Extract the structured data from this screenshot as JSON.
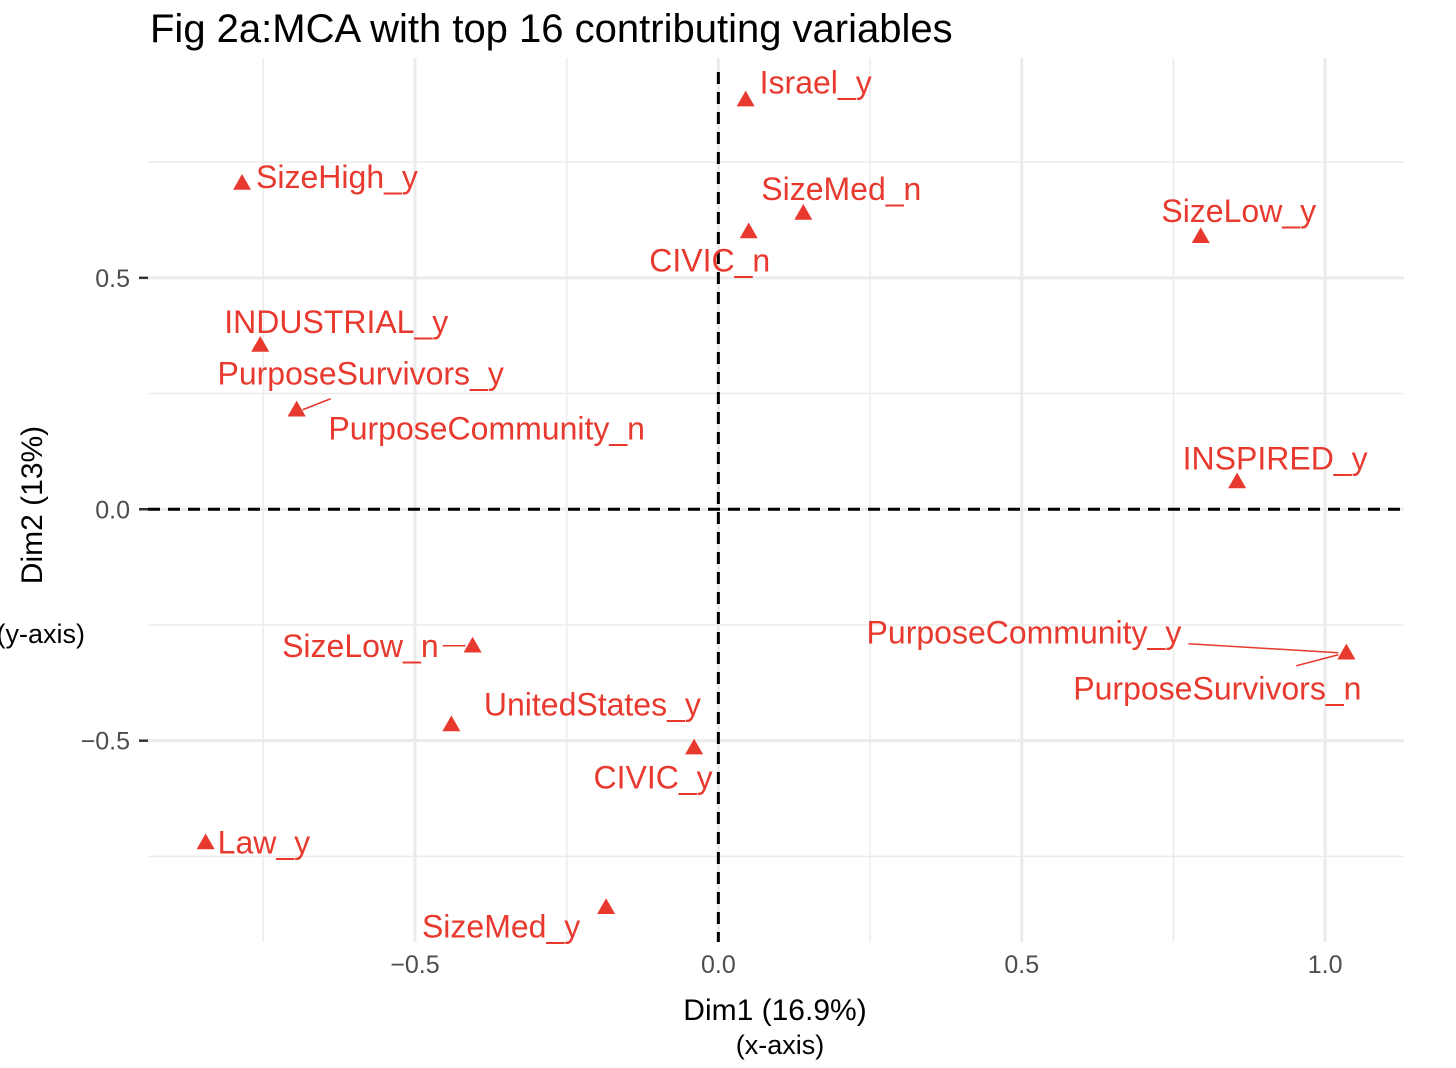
{
  "chart_data": {
    "type": "scatter",
    "title": "Fig 2a:MCA with top 16 contributing variables",
    "xlabel": "Dim1 (16.9%)",
    "xlabel_note": "(x-axis)",
    "ylabel": "Dim2 (13%)",
    "ylabel_note": "(y-axis)",
    "xlim": [
      -0.94,
      1.13
    ],
    "ylim": [
      -0.935,
      0.975
    ],
    "xticks": [
      -0.5,
      0.0,
      0.5,
      1.0
    ],
    "xtick_labels": [
      "−0.5",
      "0.0",
      "0.5",
      "1.0"
    ],
    "yticks": [
      -0.5,
      0.0,
      0.5
    ],
    "ytick_labels": [
      "−0.5",
      "0.0",
      "0.5"
    ],
    "grid": true,
    "reference_lines": {
      "x": 0,
      "y": 0,
      "style": "dashed"
    },
    "marker": "triangle",
    "point_color": "#e8392e",
    "points": [
      {
        "label": "Israel_y",
        "x": 0.045,
        "y": 0.885
      },
      {
        "label": "SizeHigh_y",
        "x": -0.785,
        "y": 0.705
      },
      {
        "label": "SizeMed_n",
        "x": 0.14,
        "y": 0.64
      },
      {
        "label": "SizeLow_y",
        "x": 0.795,
        "y": 0.59
      },
      {
        "label": "CIVIC_n",
        "x": 0.05,
        "y": 0.6
      },
      {
        "label": "INDUSTRIAL_y",
        "x": -0.755,
        "y": 0.355
      },
      {
        "label": "PurposeSurvivors_y",
        "x": -0.695,
        "y": 0.215
      },
      {
        "label": "PurposeCommunity_n",
        "x": -0.695,
        "y": 0.215
      },
      {
        "label": "INSPIRED_y",
        "x": 0.855,
        "y": 0.06
      },
      {
        "label": "SizeLow_n",
        "x": -0.405,
        "y": -0.295
      },
      {
        "label": "PurposeCommunity_y",
        "x": 1.035,
        "y": -0.31
      },
      {
        "label": "PurposeSurvivors_n",
        "x": 1.035,
        "y": -0.31
      },
      {
        "label": "UnitedStates_y",
        "x": -0.44,
        "y": -0.465
      },
      {
        "label": "CIVIC_y",
        "x": -0.04,
        "y": -0.515
      },
      {
        "label": "Law_y",
        "x": -0.845,
        "y": -0.72
      },
      {
        "label": "SizeMed_y",
        "x": -0.185,
        "y": -0.86
      }
    ]
  }
}
